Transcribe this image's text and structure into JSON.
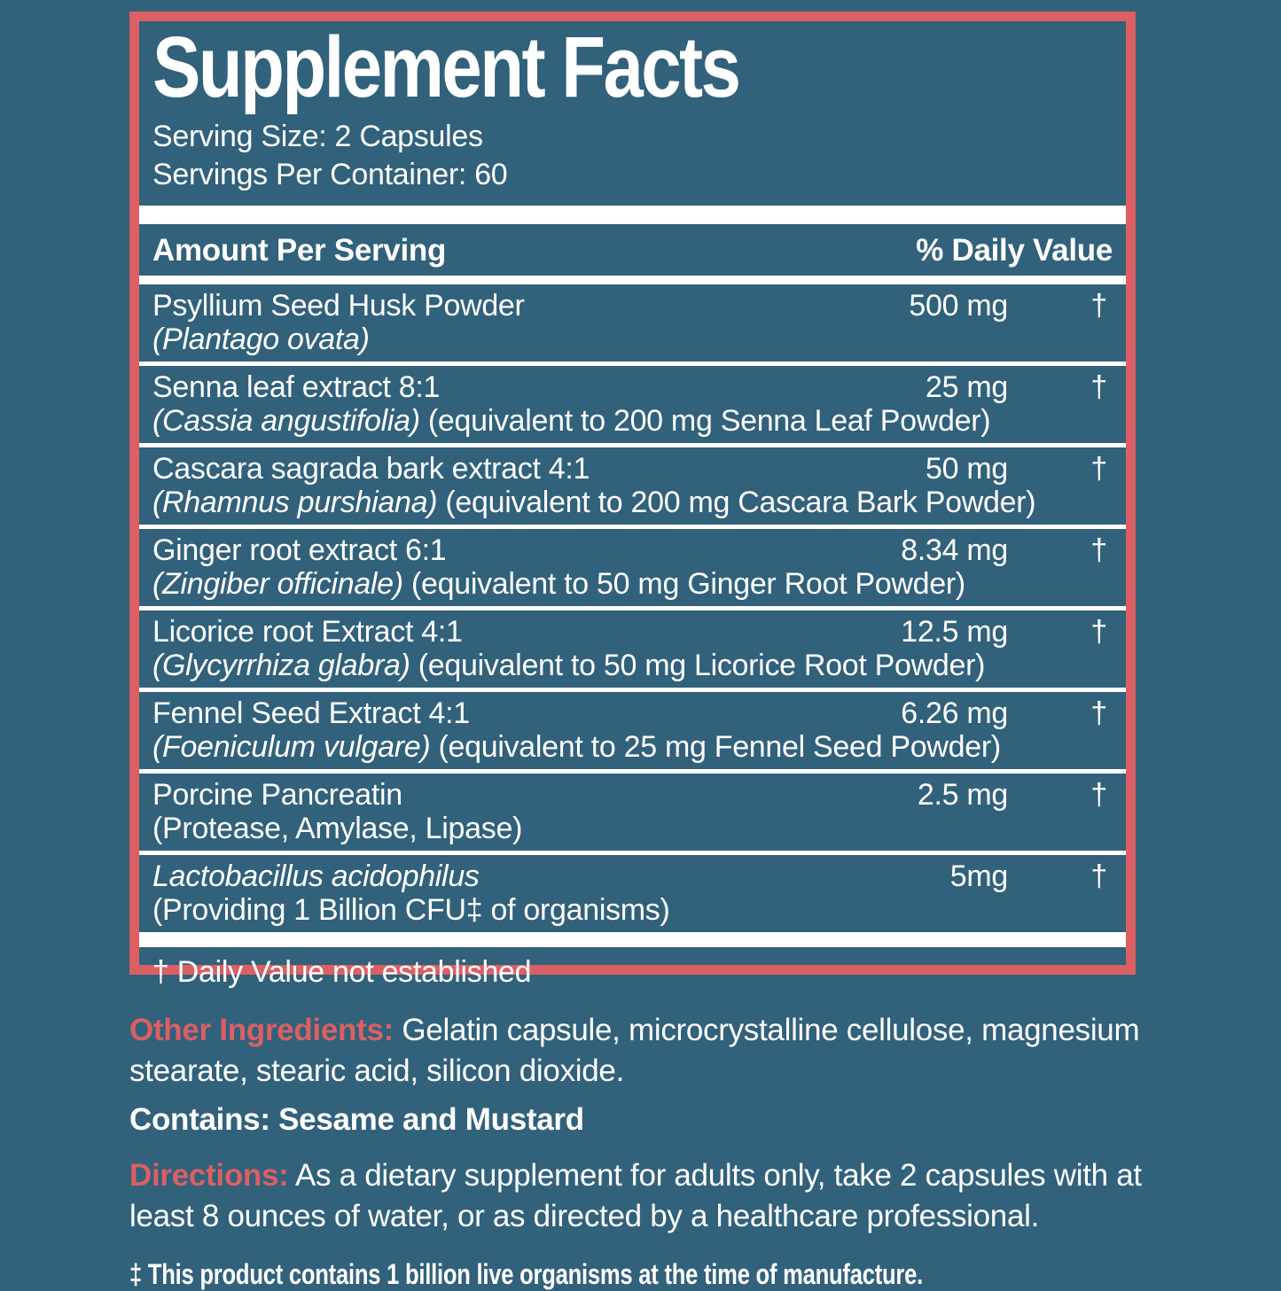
{
  "colors": {
    "background": "#31617B",
    "accent_red": "#DB5F63",
    "text": "#FFFFFF"
  },
  "panel": {
    "title": "Supplement Facts",
    "serving_size": "Serving Size: 2 Capsules",
    "servings_per_container": "Servings Per Container: 60",
    "header": {
      "amount_label": "Amount Per Serving",
      "dv_label": "% Daily Value"
    },
    "rows": [
      {
        "name": "Psyllium Seed Husk Powder",
        "name_italic": false,
        "sub_italic": "(Plantago ovata)",
        "sub_rest": "",
        "amount": "500 mg",
        "dv": "†"
      },
      {
        "name": "Senna leaf extract 8:1",
        "name_italic": false,
        "sub_italic": "(Cassia angustifolia)",
        "sub_rest": " (equivalent to 200 mg Senna Leaf Powder)",
        "amount": "25 mg",
        "dv": "†"
      },
      {
        "name": "Cascara sagrada bark extract 4:1",
        "name_italic": false,
        "sub_italic": "(Rhamnus purshiana)",
        "sub_rest": " (equivalent to 200 mg Cascara Bark Powder)",
        "amount": "50 mg",
        "dv": "†"
      },
      {
        "name": "Ginger root extract 6:1",
        "name_italic": false,
        "sub_italic": "(Zingiber officinale)",
        "sub_rest": " (equivalent to 50 mg Ginger Root Powder)",
        "amount": "8.34 mg",
        "dv": "†"
      },
      {
        "name": "Licorice root Extract 4:1",
        "name_italic": false,
        "sub_italic": "(Glycyrrhiza glabra)",
        "sub_rest": " (equivalent to 50 mg Licorice Root Powder)",
        "amount": "12.5 mg",
        "dv": "†"
      },
      {
        "name": "Fennel Seed Extract 4:1",
        "name_italic": false,
        "sub_italic": "(Foeniculum vulgare)",
        "sub_rest": " (equivalent to 25 mg Fennel Seed Powder)",
        "amount": "6.26 mg",
        "dv": "†"
      },
      {
        "name": "Porcine Pancreatin",
        "name_italic": false,
        "sub_italic": "",
        "sub_rest": "(Protease, Amylase, Lipase)",
        "amount": "2.5 mg",
        "dv": "†"
      },
      {
        "name": "Lactobacillus acidophilus",
        "name_italic": true,
        "sub_italic": "",
        "sub_rest": "(Providing 1 Billion CFU‡ of organisms)",
        "amount": "5mg",
        "dv": "†"
      }
    ],
    "footnote": "† Daily Value not established"
  },
  "below": {
    "other_ingredients_label": "Other Ingredients:",
    "other_ingredients_text": " Gelatin capsule, microcrystalline cellulose, magnesium stearate, stearic acid, silicon dioxide.",
    "contains": "Contains: Sesame and Mustard",
    "directions_label": "Directions:",
    "directions_text": " As a dietary supplement for adults only, take 2 capsules with at least 8 ounces of water, or as directed by a healthcare professional.",
    "organism_footnote": "‡ This product contains 1 billion live organisms at the time of manufacture."
  }
}
